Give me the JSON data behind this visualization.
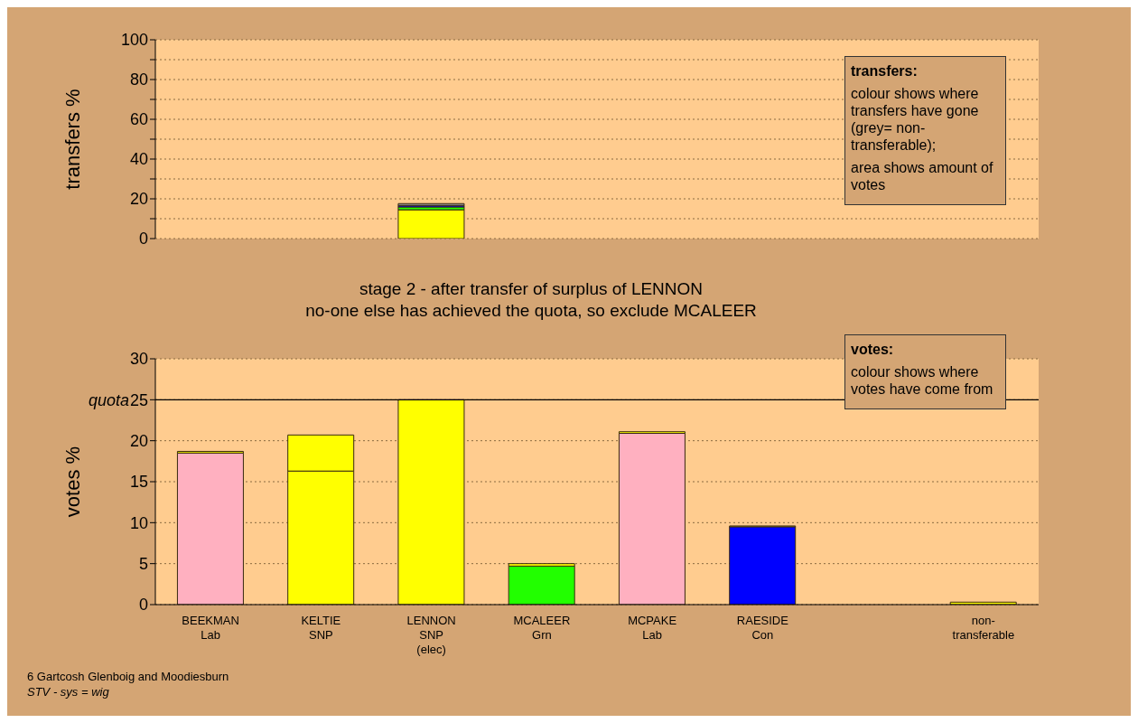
{
  "chart_data": [
    {
      "type": "bar",
      "stacked": true,
      "ylabel": "transfers %",
      "categories": [
        null,
        null,
        null,
        null,
        null,
        null,
        null,
        null
      ],
      "series": [
        {
          "color": "#ffff00",
          "values": [
            null,
            null,
            14.5,
            null,
            null,
            null,
            null,
            null
          ]
        },
        {
          "color": "#22ff00",
          "values": [
            null,
            null,
            1.4,
            null,
            null,
            null,
            null,
            null
          ]
        },
        {
          "color": "#0000ff",
          "values": [
            null,
            null,
            0.8,
            null,
            null,
            null,
            null,
            null
          ]
        },
        {
          "color": "#a0a0a0",
          "values": [
            null,
            null,
            0.9,
            null,
            null,
            null,
            null,
            null
          ]
        }
      ],
      "ylim": [
        0,
        100
      ],
      "yticks": [
        0,
        {
          "value": 10,
          "label": null
        },
        20,
        {
          "value": 30,
          "label": null
        },
        40,
        {
          "value": 50,
          "label": null
        },
        60,
        {
          "value": 70,
          "label": null
        },
        80,
        {
          "value": 90,
          "label": null
        },
        100
      ],
      "grid": "y",
      "tick_labels": "y",
      "legend": false,
      "annotations": [
        "transfers:",
        "colour shows where transfers have gone (grey= non-transferable);",
        "area shows amount of votes"
      ]
    },
    {
      "type": "bar",
      "stacked": true,
      "title": "stage 2 - after transfer of surplus of LENNON",
      "subtitle": "no-one else has achieved the quota, so exclude MCALEER",
      "ylabel": "votes %",
      "categories": [
        "BEEKMAN\nLab",
        "KELTIE\nSNP",
        "LENNON\nSNP\n(elec)",
        "MCALEER\nGrn",
        "MCPAKE\nLab",
        "RAESIDE\nCon",
        null,
        "non-\ntransferable"
      ],
      "series": [
        {
          "colors": [
            "#ffb0c0",
            "#ffff00",
            "#ffff00",
            "#22ff00",
            "#ffb0c0",
            "#0000ff",
            "#a0a0a0",
            "#a0a0a0"
          ],
          "values": [
            18.5,
            16.3,
            25,
            4.7,
            20.9,
            9.5,
            null,
            null
          ]
        },
        {
          "color": "#ffff00",
          "values": [
            0.2,
            4.4,
            null,
            0.3,
            0.2,
            0.1,
            null,
            0.3
          ]
        }
      ],
      "ylim": [
        0,
        30
      ],
      "yticks": [
        0,
        5,
        10,
        15,
        20,
        25,
        30
      ],
      "ref_lines": [
        {
          "axis": "y",
          "value": 25,
          "label": "quota"
        }
      ],
      "grid": "y",
      "legend": false,
      "annotations": [
        "votes:",
        "colour shows where votes have come from",
        "6 Gartcosh Glenboig and Moodiesburn",
        "STV - sys = wig"
      ]
    }
  ]
}
